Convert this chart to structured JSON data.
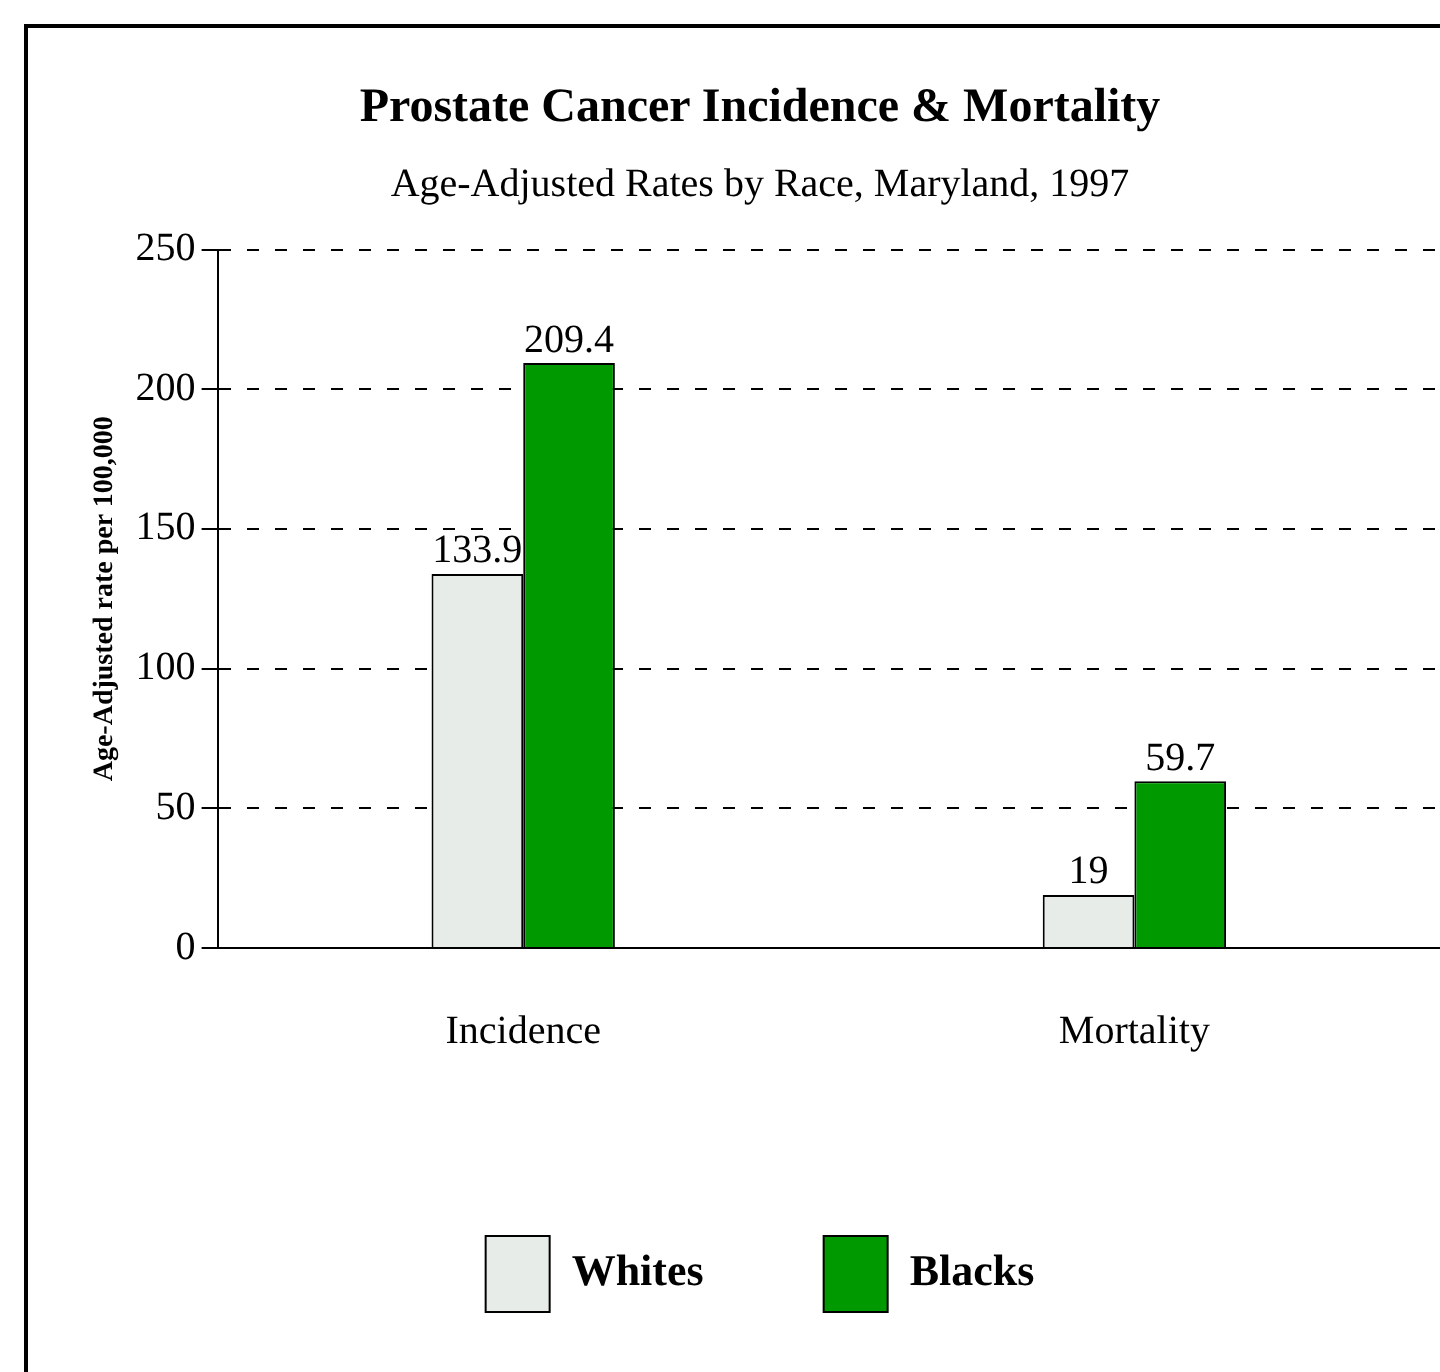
{
  "chart_data": {
    "type": "bar",
    "title": "Prostate Cancer Incidence & Mortality",
    "subtitle": "Age-Adjusted Rates by Race, Maryland, 1997",
    "ylabel": "Age-Adjusted rate per 100,000",
    "categories": [
      "Incidence",
      "Mortality"
    ],
    "series": [
      {
        "name": "Whites",
        "color": "#e8ece8",
        "values": [
          133.9,
          19
        ]
      },
      {
        "name": "Blacks",
        "color": "#009900",
        "values": [
          209.4,
          59.7
        ]
      }
    ],
    "ylim": [
      0,
      250
    ],
    "yticks": [
      0,
      50,
      100,
      150,
      200,
      250
    ],
    "grid": "y",
    "legend": "bottom",
    "data_labels": true
  }
}
